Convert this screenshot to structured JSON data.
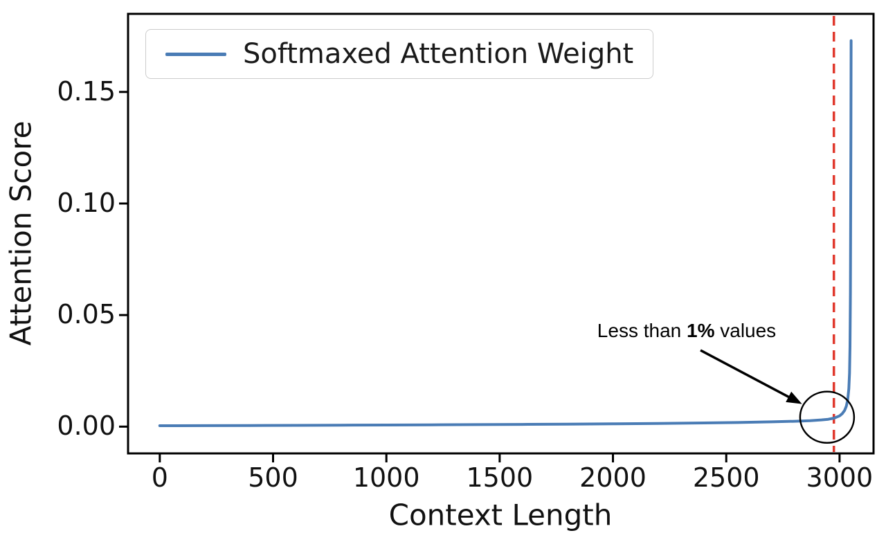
{
  "figure": {
    "background": "#ffffff"
  },
  "chart_data": {
    "type": "line",
    "title": "",
    "xlabel": "Context Length",
    "ylabel": "Attention Score",
    "xlim": [
      -140,
      3150
    ],
    "ylim": [
      -0.012,
      0.185
    ],
    "grid": false,
    "xticks": [
      0,
      500,
      1000,
      1500,
      2000,
      2500,
      3000
    ],
    "xtick_labels": [
      "0",
      "500",
      "1000",
      "1500",
      "2000",
      "2500",
      "3000"
    ],
    "yticks": [
      0.0,
      0.05,
      0.1,
      0.15
    ],
    "ytick_labels": [
      "0.00",
      "0.05",
      "0.10",
      "0.15"
    ],
    "legend": {
      "position": "upper-left",
      "entries": [
        {
          "label": "Softmaxed Attention Weight",
          "color": "#4a7cb5"
        }
      ]
    },
    "series": [
      {
        "name": "Softmaxed Attention Weight",
        "color": "#4a7cb5",
        "points": [
          [
            0,
            0.0004
          ],
          [
            200,
            0.00045
          ],
          [
            400,
            0.0005
          ],
          [
            600,
            0.00058
          ],
          [
            800,
            0.00065
          ],
          [
            1000,
            0.00072
          ],
          [
            1200,
            0.0008
          ],
          [
            1400,
            0.0009
          ],
          [
            1600,
            0.001
          ],
          [
            1800,
            0.00112
          ],
          [
            2000,
            0.00126
          ],
          [
            2200,
            0.00144
          ],
          [
            2400,
            0.00165
          ],
          [
            2550,
            0.00185
          ],
          [
            2700,
            0.00215
          ],
          [
            2800,
            0.0024
          ],
          [
            2870,
            0.00268
          ],
          [
            2920,
            0.003
          ],
          [
            2950,
            0.0033
          ],
          [
            2975,
            0.0038
          ],
          [
            3000,
            0.0048
          ],
          [
            3012,
            0.0058
          ],
          [
            3022,
            0.0072
          ],
          [
            3030,
            0.0092
          ],
          [
            3036,
            0.012
          ],
          [
            3041,
            0.017
          ],
          [
            3044,
            0.024
          ],
          [
            3046,
            0.036
          ],
          [
            3048,
            0.06
          ],
          [
            3049,
            0.09
          ],
          [
            3050,
            0.13
          ],
          [
            3051,
            0.173
          ]
        ]
      }
    ],
    "vline": {
      "x": 2975,
      "color": "#e0382d",
      "style": "dashed"
    },
    "annotation": {
      "text_prefix": "Less than ",
      "text_bold": "1%",
      "text_suffix": " values",
      "target": {
        "x": 2945,
        "y": 0.0042
      },
      "circle_radius_px": 39,
      "color": "#000000"
    }
  }
}
